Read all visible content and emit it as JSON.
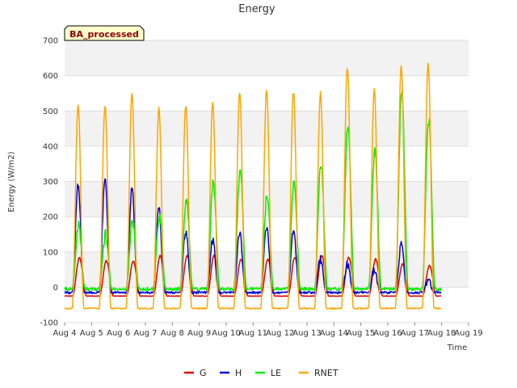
{
  "chart_data": {
    "type": "line",
    "title": "Energy",
    "badge": "BA_processed",
    "xlabel": "Time",
    "ylabel": "Energy (W/m2)",
    "xlim": [
      "Aug 4",
      "Aug 19"
    ],
    "ylim": [
      -100,
      700
    ],
    "x_ticks": [
      "Aug 4",
      "Aug 5",
      "Aug 6",
      "Aug 7",
      "Aug 8",
      "Aug 9",
      "Aug 10",
      "Aug 11",
      "Aug 12",
      "Aug 13",
      "Aug 14",
      "Aug 15",
      "Aug 16",
      "Aug 17",
      "Aug 18",
      "Aug 19"
    ],
    "y_ticks": [
      -100,
      0,
      100,
      200,
      300,
      400,
      500,
      600,
      700
    ],
    "grid": true,
    "legend_position": "bottom",
    "data_x_range": [
      "Aug 4",
      "Aug 18"
    ],
    "days": [
      "Aug 4",
      "Aug 5",
      "Aug 6",
      "Aug 7",
      "Aug 8",
      "Aug 9",
      "Aug 10",
      "Aug 11",
      "Aug 12",
      "Aug 13",
      "Aug 14",
      "Aug 15",
      "Aug 16",
      "Aug 17"
    ],
    "series": [
      {
        "name": "G",
        "color": "#dd0000",
        "night": -25,
        "daily_peak": [
          85,
          75,
          75,
          90,
          90,
          90,
          80,
          80,
          85,
          90,
          85,
          80,
          65,
          62
        ]
      },
      {
        "name": "H",
        "color": "#0000dd",
        "night": -15,
        "daily_peak": [
          290,
          300,
          280,
          220,
          160,
          135,
          155,
          170,
          165,
          80,
          65,
          50,
          120,
          20
        ]
      },
      {
        "name": "LE",
        "color": "#00ee00",
        "night": -5,
        "daily_peak": [
          175,
          150,
          185,
          205,
          250,
          300,
          340,
          265,
          300,
          355,
          460,
          385,
          560,
          475
        ]
      },
      {
        "name": "RNET",
        "color": "#ffa500",
        "night": -60,
        "daily_peak": [
          515,
          515,
          550,
          505,
          515,
          525,
          550,
          560,
          555,
          550,
          625,
          560,
          630,
          635
        ]
      }
    ]
  }
}
